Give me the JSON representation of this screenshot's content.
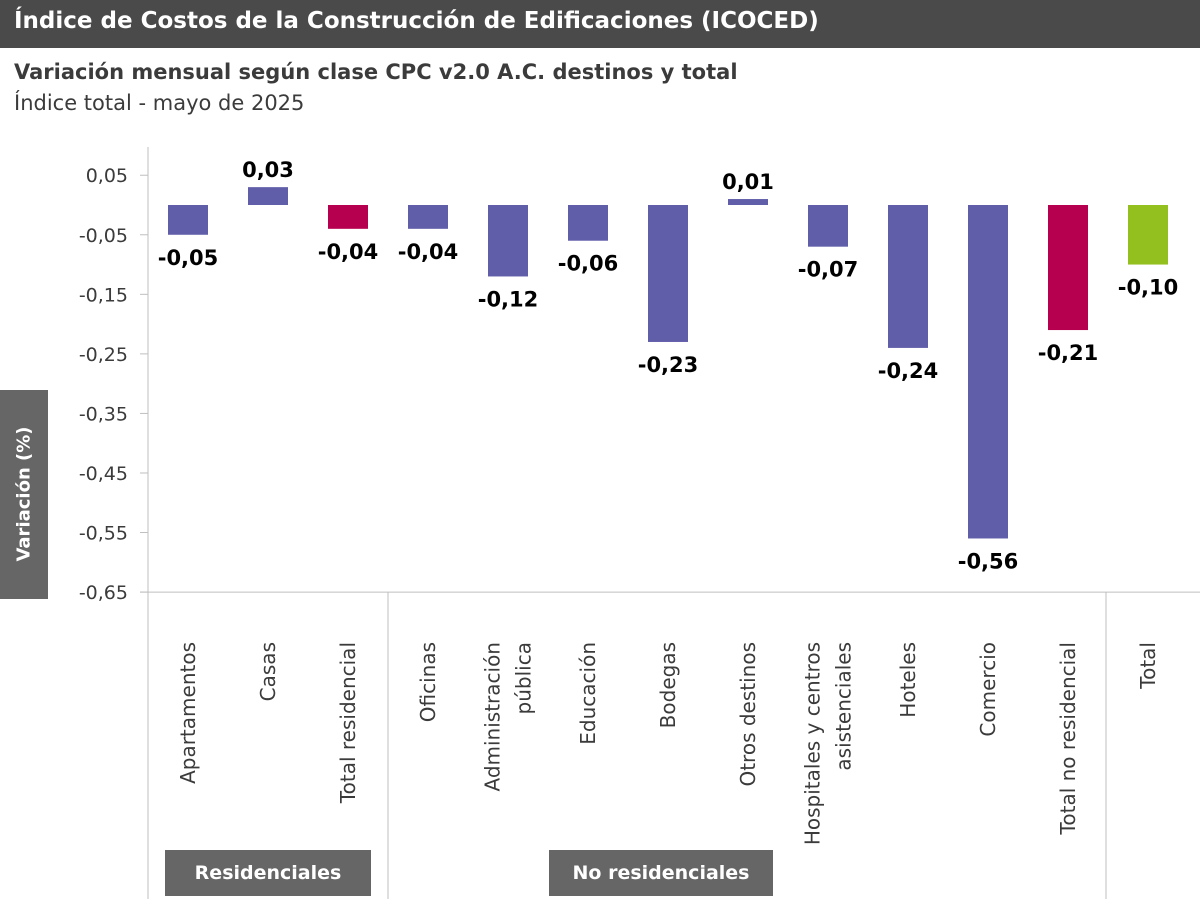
{
  "title": "Índice de Costos de la Construcción de Edificaciones (ICOCED)",
  "subtitle": "Variación mensual según clase CPC v2.0 A.C. destinos y total",
  "subtitle2": "Índice total - mayo de 2025",
  "colors": {
    "title_bg": "#4a4a4a",
    "destino": "#615ea9",
    "total_grupo": "#b6004f",
    "total": "#93bf1f",
    "group_label_bg": "#666666"
  },
  "groups": {
    "residencial": "Residenciales",
    "no_residencial": "No residenciales"
  },
  "chart_data": {
    "type": "bar",
    "title": "Variación mensual según clase CPC v2.0 A.C. destinos y total",
    "ylabel": "Variación (%)",
    "xlabel": "",
    "ylim": [
      -0.65,
      0.1
    ],
    "yticks": [
      "0,05",
      "-0,05",
      "-0,15",
      "-0,25",
      "-0,35",
      "-0,45",
      "-0,55",
      "-0,65"
    ],
    "ytick_values": [
      0.05,
      -0.05,
      -0.15,
      -0.25,
      -0.35,
      -0.45,
      -0.55,
      -0.65
    ],
    "categories": [
      "Apartamentos",
      "Casas",
      "Total residencial",
      "Oficinas",
      "Administración pública",
      "Educación",
      "Bodegas",
      "Otros destinos",
      "Hospitales y centros asistenciales",
      "Hoteles",
      "Comercio",
      "Total no residencial",
      "Total"
    ],
    "category_lines": [
      [
        "Apartamentos"
      ],
      [
        "Casas"
      ],
      [
        "Total residencial"
      ],
      [
        "Oficinas"
      ],
      [
        "Administración",
        "pública"
      ],
      [
        "Educación"
      ],
      [
        "Bodegas"
      ],
      [
        "Otros destinos"
      ],
      [
        "Hospitales y centros",
        "asistenciales"
      ],
      [
        "Hoteles"
      ],
      [
        "Comercio"
      ],
      [
        "Total no residencial"
      ],
      [
        "Total"
      ]
    ],
    "values": [
      -0.05,
      0.03,
      -0.04,
      -0.04,
      -0.12,
      -0.06,
      -0.23,
      0.01,
      -0.07,
      -0.24,
      -0.56,
      -0.21,
      -0.1
    ],
    "labels": [
      "-0,05",
      "0,03",
      "-0,04",
      "-0,04",
      "-0,12",
      "-0,06",
      "-0,23",
      "0,01",
      "-0,07",
      "-0,24",
      "-0,56",
      "-0,21",
      "-0,10"
    ],
    "bar_kind": [
      "destino",
      "destino",
      "total_grupo",
      "destino",
      "destino",
      "destino",
      "destino",
      "destino",
      "destino",
      "destino",
      "destino",
      "total_grupo",
      "total"
    ],
    "grid": false,
    "legend": "none"
  }
}
